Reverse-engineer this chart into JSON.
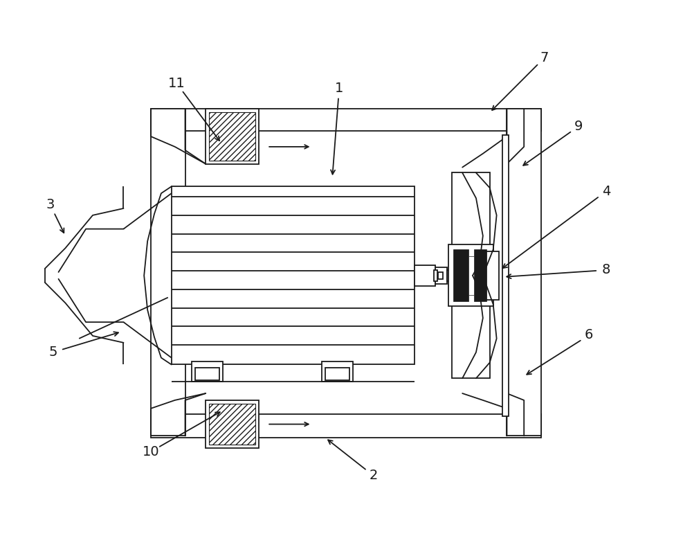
{
  "background_color": "#ffffff",
  "line_color": "#1a1a1a",
  "figsize": [
    10.0,
    7.74
  ],
  "dpi": 100,
  "lw": 1.3
}
